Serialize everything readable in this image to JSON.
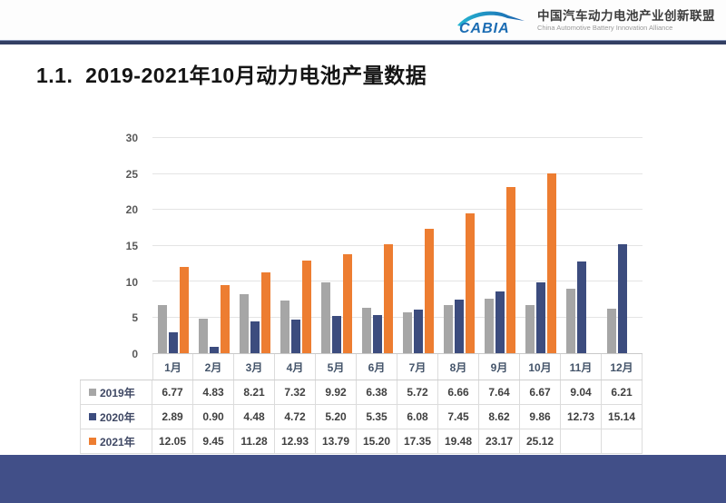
{
  "header": {
    "logo_text": "CABIA",
    "org_name_zh": "中国汽车动力电池产业创新联盟",
    "org_name_en": "China Automotive Battery Innovation Alliance"
  },
  "page_title": "1.1.  2019-2021年10月动力电池产量数据",
  "chart_data": {
    "type": "bar",
    "title": "2019-2021年10月动力电池产量数据",
    "categories": [
      "1月",
      "2月",
      "3月",
      "4月",
      "5月",
      "6月",
      "7月",
      "8月",
      "9月",
      "10月",
      "11月",
      "12月"
    ],
    "series": [
      {
        "name": "2019年",
        "color": "#A6A6A6",
        "values": [
          6.77,
          4.83,
          8.21,
          7.32,
          9.92,
          6.38,
          5.72,
          6.66,
          7.64,
          6.67,
          9.04,
          6.21
        ]
      },
      {
        "name": "2020年",
        "color": "#3C4C7E",
        "values": [
          2.89,
          0.9,
          4.48,
          4.72,
          5.2,
          5.35,
          6.08,
          7.45,
          8.62,
          9.86,
          12.73,
          15.14
        ]
      },
      {
        "name": "2021年",
        "color": "#ED7D31",
        "values": [
          12.05,
          9.45,
          11.28,
          12.93,
          13.79,
          15.2,
          17.35,
          19.48,
          23.17,
          25.12,
          null,
          null
        ]
      }
    ],
    "ylim": [
      0,
      30
    ],
    "yticks": [
      0,
      5,
      10,
      15,
      20,
      25,
      30
    ],
    "grid": true,
    "legend_position": "data-table-left",
    "data_table": true,
    "value_decimals": 2
  },
  "colors": {
    "footer_band": "#414F88",
    "header_divider": "#333F63",
    "grid_line": "#E4E4E4",
    "axis_line": "#C9C9C9",
    "table_border": "#DCDCDC",
    "axis_text": "#595959",
    "month_text": "#44546A",
    "logo_blue": "#1B6CB3",
    "logo_teal": "#25B6D2"
  }
}
